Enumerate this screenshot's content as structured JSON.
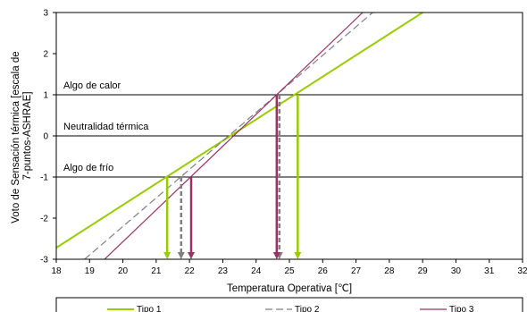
{
  "chart_data": {
    "type": "line",
    "xlabel": "Temperatura Operativa [℃]",
    "ylabel_lines": [
      "Voto de Sensación térmica [escala de",
      "7-puntos-ASHRAE]"
    ],
    "xlim": [
      18,
      32
    ],
    "ylim": [
      -3,
      3
    ],
    "xticks": [
      "18",
      "19",
      "20",
      "21",
      "22",
      "23",
      "24",
      "25",
      "26",
      "27",
      "28",
      "29",
      "30",
      "31",
      "32"
    ],
    "yticks": [
      "3",
      "2",
      "1",
      "0",
      "-1",
      "-2",
      "-3"
    ],
    "reference_lines": [
      {
        "y": 1,
        "label": "Algo de calor"
      },
      {
        "y": 0,
        "label": "Neutralidad térmica"
      },
      {
        "y": -1,
        "label": "Algo de frío"
      }
    ],
    "series": [
      {
        "name": "Tipo 1",
        "color": "#99cc00",
        "dash": "solid",
        "line": {
          "x": [
            18,
            29.0
          ],
          "y": [
            -2.72,
            3.0
          ]
        },
        "markers": [
          21.33,
          25.25
        ]
      },
      {
        "name": "Tipo 2",
        "color": "#808080",
        "dash": "dashed",
        "line": {
          "x": [
            18.85,
            27.5
          ],
          "y": [
            -3.0,
            3.0
          ]
        },
        "markers": [
          21.75,
          24.7
        ]
      },
      {
        "name": "Tipo 3",
        "color": "#993366",
        "dash": "solid",
        "line": {
          "x": [
            19.45,
            27.2
          ],
          "y": [
            -3.0,
            3.0
          ]
        },
        "markers": [
          22.05,
          24.62
        ]
      }
    ]
  }
}
